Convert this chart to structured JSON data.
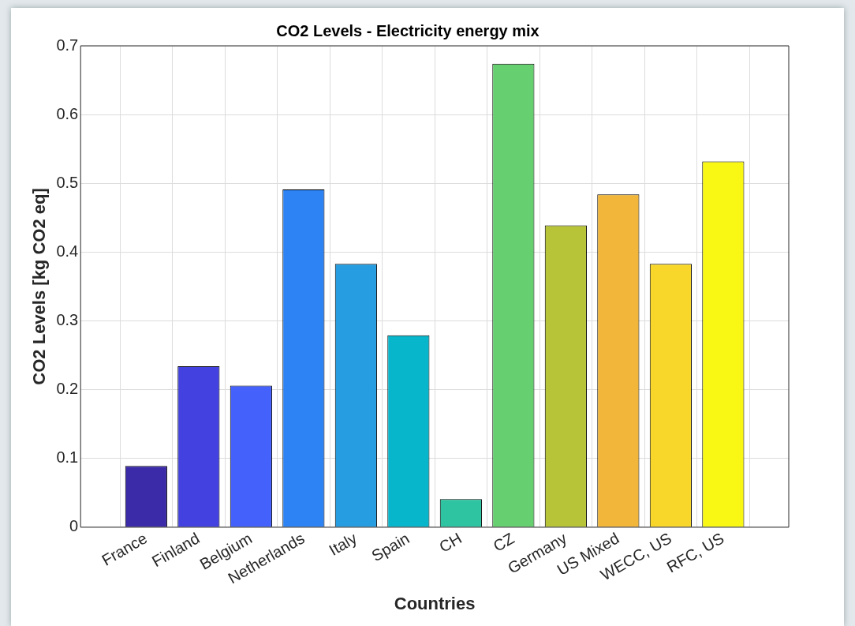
{
  "chart_data": {
    "type": "bar",
    "title": "CO2 Levels - Electricity energy mix",
    "xlabel": "Countries",
    "ylabel": "CO2 Levels [kg CO2 eq]",
    "categories": [
      "France",
      "Finland",
      "Belgium",
      "Netherlands",
      "Italy",
      "Spain",
      "CH",
      "CZ",
      "Germany",
      "US Mixed",
      "WECC, US",
      "RFC, US"
    ],
    "values": [
      0.089,
      0.234,
      0.206,
      0.491,
      0.383,
      0.279,
      0.041,
      0.674,
      0.439,
      0.484,
      0.383,
      0.532
    ],
    "colors": [
      "#3b2ba8",
      "#4341e0",
      "#4561fb",
      "#2d82f4",
      "#259de0",
      "#07b6cb",
      "#2ec4a1",
      "#66cf6f",
      "#b8c437",
      "#f2b73a",
      "#f8d72a",
      "#f9f815"
    ],
    "ylim": [
      0,
      0.7
    ],
    "yticks": [
      0,
      0.1,
      0.2,
      0.3,
      0.4,
      0.5,
      0.6,
      0.7
    ],
    "grid": true,
    "legend": false
  }
}
